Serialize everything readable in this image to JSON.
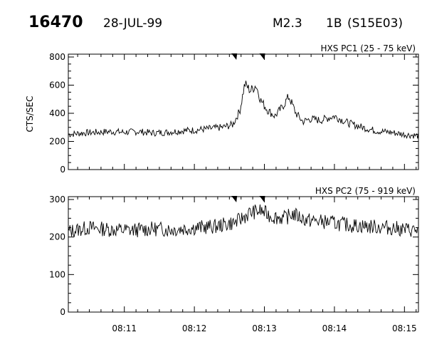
{
  "header": {
    "event_id": "16470",
    "date": "28-JUL-99",
    "class": "M2.3",
    "optical": "1B",
    "location": "(S15E03)"
  },
  "chart_data": [
    {
      "type": "line",
      "title": "HXS PC1 (25 - 75 keV)",
      "ylabel": "CTS/SEC",
      "xlabel": "",
      "ylim": [
        0,
        800
      ],
      "yticks": [
        "0",
        "200",
        "400",
        "600",
        "800"
      ],
      "x_minutes": [
        10.2,
        10.4,
        10.6,
        10.8,
        11.0,
        11.2,
        11.4,
        11.6,
        11.8,
        12.0,
        12.2,
        12.4,
        12.55,
        12.65,
        12.72,
        12.8,
        12.88,
        12.95,
        13.05,
        13.15,
        13.25,
        13.35,
        13.45,
        13.55,
        13.65,
        13.8,
        14.0,
        14.2,
        14.4,
        14.6,
        14.8,
        15.0,
        15.2
      ],
      "values": [
        250,
        260,
        265,
        270,
        265,
        270,
        260,
        265,
        275,
        280,
        290,
        300,
        320,
        420,
        610,
        560,
        600,
        490,
        420,
        380,
        440,
        520,
        400,
        340,
        360,
        350,
        380,
        330,
        300,
        275,
        265,
        250,
        240
      ],
      "xlim_minutes": [
        10.2,
        15.2
      ],
      "xticks": [
        "08:11",
        "08:12",
        "08:13",
        "08:14",
        "08:15"
      ],
      "markers_minutes": [
        12.6,
        13.0
      ]
    },
    {
      "type": "line",
      "title": "HXS PC2 (75 - 919 keV)",
      "ylabel": "",
      "xlabel": "",
      "ylim": [
        0,
        300
      ],
      "yticks": [
        "0",
        "100",
        "200",
        "300"
      ],
      "x_minutes": [
        10.2,
        10.5,
        10.8,
        11.1,
        11.4,
        11.7,
        12.0,
        12.3,
        12.6,
        12.8,
        12.95,
        13.1,
        13.3,
        13.4,
        13.6,
        13.9,
        14.2,
        14.5,
        14.8,
        15.0,
        15.2
      ],
      "values": [
        215,
        225,
        220,
        218,
        222,
        220,
        225,
        228,
        240,
        265,
        270,
        255,
        250,
        262,
        245,
        240,
        232,
        228,
        225,
        220,
        218
      ],
      "xlim_minutes": [
        10.2,
        15.2
      ],
      "xticks": [
        "08:11",
        "08:12",
        "08:13",
        "08:14",
        "08:15"
      ],
      "markers_minutes": [
        12.6,
        13.0
      ]
    }
  ]
}
